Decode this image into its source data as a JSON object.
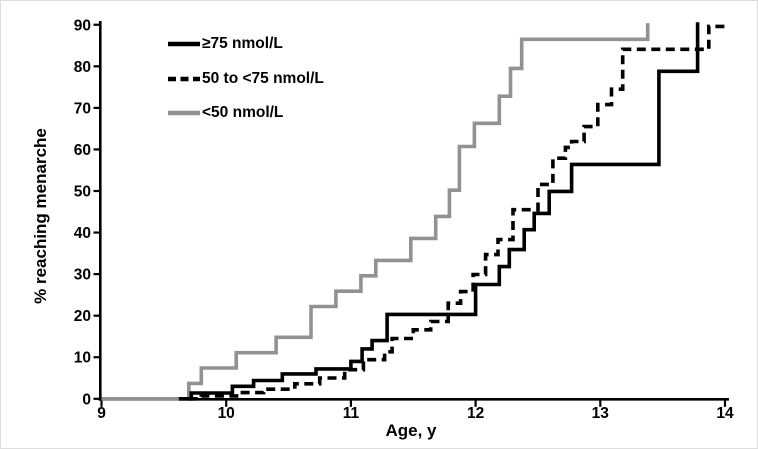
{
  "figure": {
    "background": "#ffffff",
    "frame_color": "#dedede",
    "axis_color": "#000000",
    "text_color": "#000000"
  },
  "chart_data": {
    "type": "line",
    "subtype": "step-kaplan-meier-cumulative-incidence",
    "title": "",
    "xlabel": "Age, y",
    "ylabel": "% reaching menarche",
    "xlim": [
      9,
      14
    ],
    "ylim": [
      0,
      90
    ],
    "xticks": [
      9,
      10,
      11,
      12,
      13,
      14
    ],
    "yticks": [
      0,
      10,
      20,
      30,
      40,
      50,
      60,
      70,
      80,
      90
    ],
    "grid": false,
    "legend_position": "top-left-inside",
    "series": [
      {
        "name": "≥75 nmol/L",
        "color": "#000000",
        "line_style": "solid",
        "line_width": 3.6,
        "points": [
          [
            9.62,
            0
          ],
          [
            9.72,
            1.4
          ],
          [
            10.05,
            3.0
          ],
          [
            10.22,
            4.4
          ],
          [
            10.45,
            6.0
          ],
          [
            10.72,
            7.2
          ],
          [
            11.0,
            9.0
          ],
          [
            11.09,
            12.0
          ],
          [
            11.17,
            14.0
          ],
          [
            11.29,
            20.3
          ],
          [
            12.0,
            27.5
          ],
          [
            12.19,
            31.8
          ],
          [
            12.27,
            35.9
          ],
          [
            12.39,
            40.7
          ],
          [
            12.47,
            44.6
          ],
          [
            12.59,
            49.9
          ],
          [
            12.77,
            56.4
          ],
          [
            13.47,
            78.8
          ],
          [
            13.78,
            90.6
          ]
        ]
      },
      {
        "name": "50 to <75 nmol/L",
        "color": "#000000",
        "line_style": "dashed",
        "line_width": 3.6,
        "points": [
          [
            9.7,
            0
          ],
          [
            9.8,
            0.7
          ],
          [
            10.1,
            1.5
          ],
          [
            10.3,
            2.3
          ],
          [
            10.55,
            3.6
          ],
          [
            10.75,
            5.0
          ],
          [
            10.95,
            7.0
          ],
          [
            11.1,
            9.4
          ],
          [
            11.27,
            11.3
          ],
          [
            11.33,
            14.5
          ],
          [
            11.5,
            16.6
          ],
          [
            11.64,
            18.6
          ],
          [
            11.78,
            23.0
          ],
          [
            11.88,
            25.8
          ],
          [
            11.98,
            29.9
          ],
          [
            12.08,
            34.7
          ],
          [
            12.18,
            38.3
          ],
          [
            12.3,
            45.5
          ],
          [
            12.5,
            51.6
          ],
          [
            12.62,
            57.9
          ],
          [
            12.72,
            60.5
          ],
          [
            12.77,
            61.9
          ],
          [
            12.87,
            65.5
          ],
          [
            12.98,
            70.8
          ],
          [
            13.09,
            74.5
          ],
          [
            13.18,
            84.1
          ],
          [
            13.87,
            89.6
          ],
          [
            14.0,
            89.6
          ]
        ]
      },
      {
        "name": "<50 nmol/L",
        "color": "#929292",
        "line_style": "solid",
        "line_width": 3.6,
        "points": [
          [
            9.0,
            0
          ],
          [
            9.7,
            3.7
          ],
          [
            9.8,
            7.4
          ],
          [
            10.08,
            11.1
          ],
          [
            10.4,
            14.8
          ],
          [
            10.68,
            22.2
          ],
          [
            10.88,
            25.9
          ],
          [
            11.08,
            29.6
          ],
          [
            11.2,
            33.3
          ],
          [
            11.48,
            38.6
          ],
          [
            11.68,
            43.9
          ],
          [
            11.79,
            50.2
          ],
          [
            11.87,
            60.7
          ],
          [
            11.99,
            66.3
          ],
          [
            12.19,
            72.8
          ],
          [
            12.28,
            79.5
          ],
          [
            12.37,
            86.5
          ],
          [
            13.38,
            90.4
          ]
        ]
      }
    ]
  }
}
